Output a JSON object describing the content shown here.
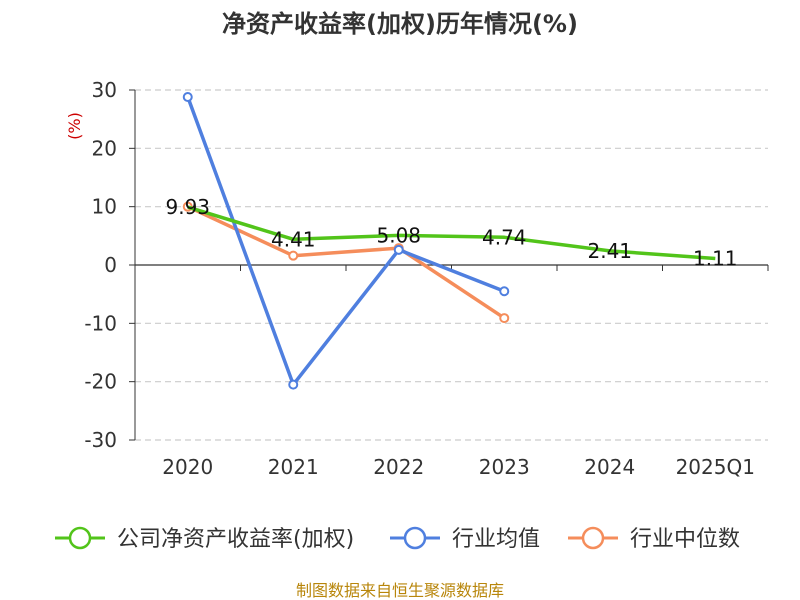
{
  "chart_data": {
    "type": "line",
    "title": "净资产收益率(加权)历年情况(%)",
    "ylabel": "(%)",
    "xlabel": "",
    "categories": [
      "2020",
      "2021",
      "2022",
      "2023",
      "2024",
      "2025Q1"
    ],
    "ylim": [
      -30,
      30
    ],
    "yticks": [
      30,
      20,
      10,
      0,
      -10,
      -20,
      -30
    ],
    "grid": true,
    "legend": "bottom",
    "series": [
      {
        "name": "公司净资产收益率(加权)",
        "color": "#52c41a",
        "marker": "none",
        "show_labels": true,
        "values": [
          9.93,
          4.41,
          5.08,
          4.74,
          2.41,
          1.11
        ],
        "labels": [
          "9.93",
          "4.41",
          "5.08",
          "4.74",
          "2.41",
          "1.11"
        ]
      },
      {
        "name": "行业均值",
        "color": "#4f7fdf",
        "marker": "circle",
        "values": [
          28.8,
          -20.5,
          2.6,
          -4.5,
          null,
          null
        ]
      },
      {
        "name": "行业中位数",
        "color": "#f58d5b",
        "marker": "circle",
        "values": [
          10.0,
          1.6,
          2.9,
          -9.1,
          null,
          null
        ]
      }
    ],
    "source": "制图数据来自恒生聚源数据库"
  }
}
